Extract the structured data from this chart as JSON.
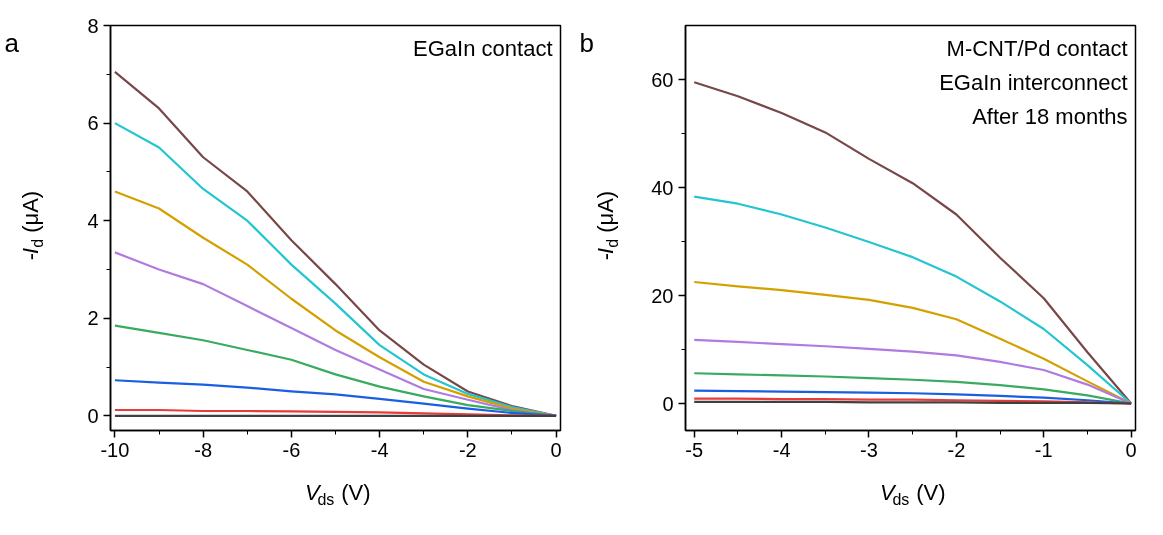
{
  "chart_data": [
    {
      "type": "line",
      "title": "a",
      "xlabel": "V$_{ds}$ (V)",
      "ylabel": "-I$_{d}$ (μA)",
      "annotations": [
        "EGaIn contact"
      ],
      "x": [
        -10,
        -9,
        -8,
        -7,
        -6,
        -5,
        -4,
        -3,
        -2,
        -1,
        0
      ],
      "xlim": [
        -10.1,
        0.1
      ],
      "xticks": [
        -10,
        -8,
        -6,
        -4,
        -2,
        0
      ],
      "ylim": [
        -0.3,
        8
      ],
      "yticks": [
        0,
        2,
        4,
        6,
        8
      ],
      "grid": false,
      "series": [
        {
          "color": "#784848",
          "values": [
            7.05,
            6.3,
            5.3,
            4.6,
            3.6,
            2.7,
            1.75,
            1.05,
            0.5,
            0.2,
            0
          ]
        },
        {
          "color": "#22c5d0",
          "values": [
            6.0,
            5.5,
            4.65,
            4.0,
            3.1,
            2.3,
            1.45,
            0.85,
            0.45,
            0.18,
            0
          ]
        },
        {
          "color": "#d4a000",
          "values": [
            4.6,
            4.25,
            3.65,
            3.1,
            2.4,
            1.75,
            1.2,
            0.7,
            0.4,
            0.15,
            0
          ]
        },
        {
          "color": "#b07be0",
          "values": [
            3.35,
            3.0,
            2.7,
            2.25,
            1.8,
            1.35,
            0.95,
            0.55,
            0.33,
            0.12,
            0
          ]
        },
        {
          "color": "#3aaa60",
          "values": [
            1.85,
            1.7,
            1.55,
            1.35,
            1.15,
            0.85,
            0.6,
            0.4,
            0.22,
            0.1,
            0
          ]
        },
        {
          "color": "#1a5fe0",
          "values": [
            0.73,
            0.68,
            0.64,
            0.58,
            0.5,
            0.44,
            0.35,
            0.25,
            0.15,
            0.06,
            0
          ]
        },
        {
          "color": "#e83c3c",
          "values": [
            0.12,
            0.12,
            0.1,
            0.1,
            0.09,
            0.08,
            0.07,
            0.05,
            0.03,
            0.01,
            0
          ]
        },
        {
          "color": "#404040",
          "values": [
            0,
            0,
            0,
            0,
            0,
            0,
            0,
            0,
            0,
            0,
            0
          ]
        }
      ]
    },
    {
      "type": "line",
      "title": "b",
      "xlabel": "V$_{ds}$ (V)",
      "ylabel": "-I$_{d}$ (μA)",
      "annotations": [
        "M-CNT/Pd contact",
        "EGaIn interconnect",
        "After 18 months"
      ],
      "x": [
        -5,
        -4.5,
        -4,
        -3.5,
        -3,
        -2.5,
        -2,
        -1.5,
        -1,
        -0.5,
        0
      ],
      "xlim": [
        -5.1,
        0.05
      ],
      "xticks": [
        -5,
        -4,
        -3,
        -2,
        -1,
        0
      ],
      "ylim": [
        -5,
        70
      ],
      "yticks": [
        0,
        20,
        40,
        60
      ],
      "grid": false,
      "series": [
        {
          "color": "#784848",
          "values": [
            59.5,
            56.9,
            53.8,
            50.2,
            45.3,
            40.8,
            35,
            27,
            19.5,
            9.5,
            0
          ]
        },
        {
          "color": "#22c5d0",
          "values": [
            38.3,
            37,
            35,
            32.6,
            29.9,
            27.1,
            23.5,
            18.9,
            13.8,
            7.1,
            0
          ]
        },
        {
          "color": "#d4a000",
          "values": [
            22.5,
            21.7,
            21,
            20.1,
            19.2,
            17.7,
            15.6,
            12,
            8.3,
            4.1,
            0
          ]
        },
        {
          "color": "#b07be0",
          "values": [
            11.8,
            11.4,
            11,
            10.6,
            10.1,
            9.6,
            8.9,
            7.7,
            6.2,
            3.5,
            0
          ]
        },
        {
          "color": "#3aaa60",
          "values": [
            5.6,
            5.4,
            5.2,
            5.0,
            4.7,
            4.4,
            4.0,
            3.4,
            2.6,
            1.5,
            0
          ]
        },
        {
          "color": "#1a5fe0",
          "values": [
            2.4,
            2.3,
            2.2,
            2.1,
            2.0,
            1.9,
            1.7,
            1.4,
            1.1,
            0.6,
            0
          ]
        },
        {
          "color": "#e83c3c",
          "values": [
            0.9,
            0.9,
            0.8,
            0.8,
            0.7,
            0.7,
            0.6,
            0.5,
            0.4,
            0.2,
            0
          ]
        },
        {
          "color": "#404040",
          "values": [
            0.3,
            0.3,
            0.3,
            0.3,
            0.2,
            0.2,
            0.2,
            0.1,
            0.1,
            0.1,
            0
          ]
        }
      ]
    }
  ]
}
